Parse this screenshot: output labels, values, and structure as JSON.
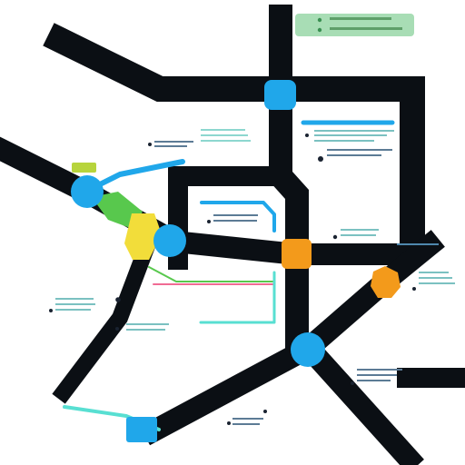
{
  "map": {
    "background": "#ffffff",
    "road_color": "#0b0f14",
    "accent_blue": "#20a7ea",
    "accent_orange": "#f39a1b",
    "accent_green": "#58c84d",
    "accent_yellow": "#f2dd3a",
    "accent_teal": "#58dfd2",
    "accent_pink": "#f06b94",
    "legend_chip_color": "#a8ddb5"
  },
  "markers": [
    {
      "name": "north-junction-marker",
      "color": "#20a7ea"
    },
    {
      "name": "west-junction-marker",
      "color": "#20a7ea"
    },
    {
      "name": "center-junction-marker",
      "color": "#f39a1b"
    },
    {
      "name": "east-junction-marker",
      "color": "#f39a1b"
    },
    {
      "name": "south-junction-marker",
      "color": "#20a7ea"
    },
    {
      "name": "southwest-terminal-marker",
      "color": "#20a7ea"
    },
    {
      "name": "yellow-node-marker",
      "color": "#f2dd3a"
    }
  ]
}
